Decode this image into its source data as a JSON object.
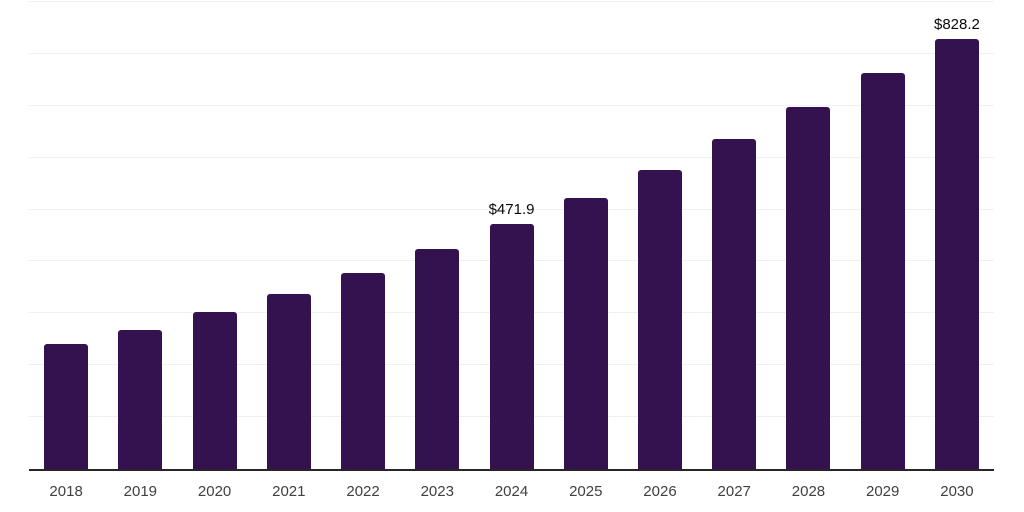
{
  "chart_data": {
    "type": "bar",
    "title": "",
    "xlabel": "",
    "ylabel": "",
    "categories": [
      "2018",
      "2019",
      "2020",
      "2021",
      "2022",
      "2023",
      "2024",
      "2025",
      "2026",
      "2027",
      "2028",
      "2029",
      "2030"
    ],
    "values": [
      240.9,
      267.9,
      302.6,
      337.3,
      377.7,
      424.0,
      471.9,
      522.3,
      576.2,
      636.0,
      697.6,
      763.2,
      828.2
    ],
    "data_labels": {
      "2024": "$471.9",
      "2030": "$828.2"
    },
    "ylim": [
      0,
      900
    ],
    "gridline_step": 100,
    "grid": "horizontal-only",
    "y_tick_labels_visible": false,
    "legend": "none",
    "bar_color": "#34124f",
    "series_name": "value"
  },
  "colors": {
    "background": "#ffffff",
    "bar": "#34124f",
    "gridline": "#f0f0f0",
    "axis_line": "#262626",
    "tick_label": "#404040",
    "value_label": "#0a0a0a"
  }
}
